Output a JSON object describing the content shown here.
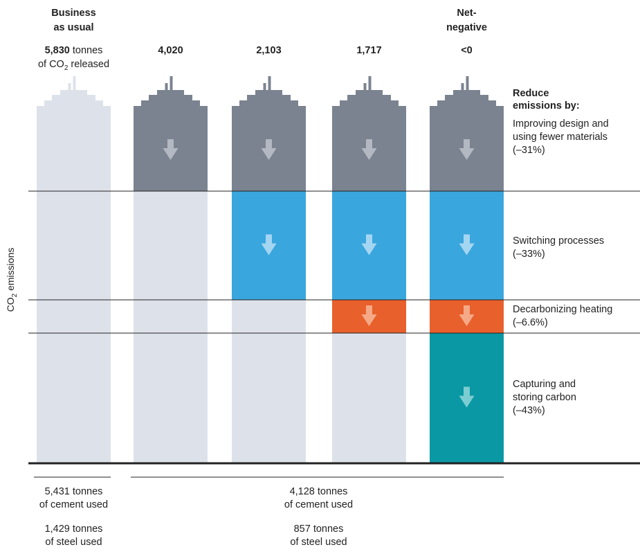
{
  "chart_data": {
    "type": "bar",
    "ylabel": "CO2 emissions",
    "scenarios": [
      {
        "header": [
          "Business",
          "as usual"
        ],
        "value_text": "5,830",
        "value_suffix": "tonnes",
        "value_subline_pre": "of CO",
        "value_subline_sub": "2",
        "value_subline_post": " released",
        "tonnes_co2": 5830
      },
      {
        "header": [],
        "value_text": "4,020",
        "tonnes_co2": 4020
      },
      {
        "header": [],
        "value_text": "2,103",
        "tonnes_co2": 2103
      },
      {
        "header": [],
        "value_text": "1,717",
        "tonnes_co2": 1717
      },
      {
        "header": [
          "Net-",
          "negative"
        ],
        "value_text": "<0",
        "tonnes_co2": null
      }
    ],
    "reduction_title": [
      "Reduce",
      "emissions by:"
    ],
    "segments": [
      {
        "key": "design",
        "label": [
          "Improving design and",
          "using fewer materials",
          "(–31%)"
        ],
        "share_pct": 31,
        "color": "#7b8390",
        "arrow_color": "#b3b8c2",
        "active_from_scenario": 1
      },
      {
        "key": "process",
        "label": [
          "Switching processes",
          "(–33%)"
        ],
        "share_pct": 33,
        "color": "#3aa6de",
        "arrow_color": "#a4d6f2",
        "active_from_scenario": 2
      },
      {
        "key": "heating",
        "label": [
          "Decarbonizing heating",
          "(–6.6%)"
        ],
        "share_pct": 6.6,
        "color": "#e8602c",
        "arrow_color": "#f5a986",
        "active_from_scenario": 3
      },
      {
        "key": "ccs",
        "label": [
          "Capturing and",
          "storing carbon",
          "(–43%)"
        ],
        "share_pct": 43,
        "color": "#0a98a4",
        "arrow_color": "#7ccdd2",
        "active_from_scenario": 4
      }
    ],
    "inactive_color": "#dde2ea",
    "footnotes": [
      {
        "span_scenarios": [
          0,
          0
        ],
        "cement": [
          "5,431 tonnes",
          "of cement used"
        ],
        "steel": [
          "1,429 tonnes",
          "of steel used"
        ]
      },
      {
        "span_scenarios": [
          1,
          4
        ],
        "cement": [
          "4,128 tonnes",
          "of cement used"
        ],
        "steel": [
          "857 tonnes",
          "of steel used"
        ]
      }
    ]
  }
}
